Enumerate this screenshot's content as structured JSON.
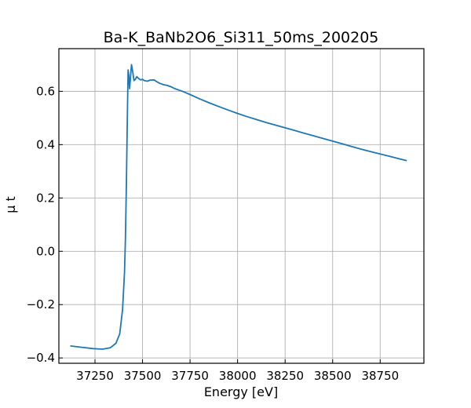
{
  "chart_data": {
    "type": "line",
    "title": "Ba-K_BaNb2O6_Si311_50ms_200205",
    "xlabel": "Energy [eV]",
    "ylabel": "μ t",
    "xlim": [
      37060,
      38980
    ],
    "ylim": [
      -0.42,
      0.76
    ],
    "xticks": [
      37250,
      37500,
      37750,
      38000,
      38250,
      38500,
      38750
    ],
    "xtick_labels": [
      "37250",
      "37500",
      "37750",
      "38000",
      "38250",
      "38500",
      "38750"
    ],
    "yticks": [
      -0.4,
      -0.2,
      0.0,
      0.2,
      0.4,
      0.6
    ],
    "ytick_labels": [
      "−0.4",
      "−0.2",
      "0.0",
      "0.2",
      "0.4",
      "0.6"
    ],
    "grid": true,
    "series": [
      {
        "color": "#1f77b4",
        "x": [
          37120,
          37180,
          37240,
          37290,
          37330,
          37360,
          37380,
          37395,
          37405,
          37410,
          37415,
          37420,
          37424,
          37428,
          37432,
          37437,
          37442,
          37448,
          37455,
          37462,
          37470,
          37480,
          37490,
          37500,
          37510,
          37525,
          37540,
          37560,
          37575,
          37590,
          37610,
          37630,
          37650,
          37670,
          37690,
          37710,
          37730,
          37750,
          37800,
          37850,
          37900,
          37950,
          38000,
          38050,
          38100,
          38150,
          38200,
          38250,
          38300,
          38350,
          38400,
          38450,
          38500,
          38550,
          38600,
          38650,
          38700,
          38750,
          38800,
          38850,
          38890
        ],
        "y": [
          -0.355,
          -0.36,
          -0.365,
          -0.367,
          -0.362,
          -0.345,
          -0.31,
          -0.22,
          -0.08,
          0.05,
          0.25,
          0.5,
          0.68,
          0.66,
          0.61,
          0.655,
          0.7,
          0.675,
          0.64,
          0.645,
          0.655,
          0.648,
          0.643,
          0.645,
          0.64,
          0.638,
          0.642,
          0.643,
          0.636,
          0.63,
          0.625,
          0.622,
          0.617,
          0.61,
          0.605,
          0.6,
          0.594,
          0.588,
          0.572,
          0.557,
          0.543,
          0.53,
          0.517,
          0.505,
          0.494,
          0.483,
          0.473,
          0.463,
          0.453,
          0.443,
          0.433,
          0.423,
          0.413,
          0.403,
          0.393,
          0.383,
          0.374,
          0.365,
          0.356,
          0.347,
          0.34
        ]
      }
    ]
  }
}
